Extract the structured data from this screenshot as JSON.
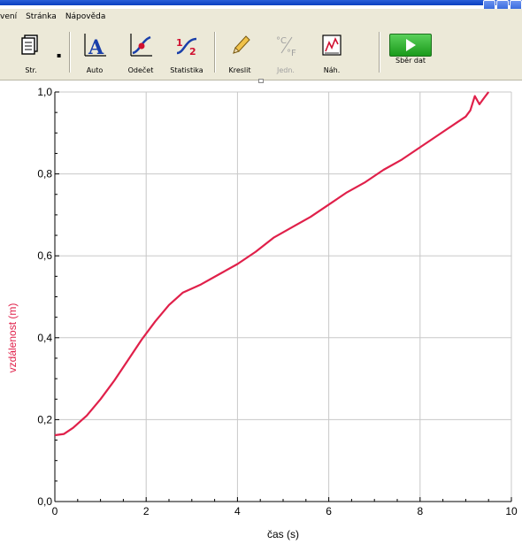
{
  "menu": [
    "vení",
    "Stránka",
    "Nápověda"
  ],
  "toolbar": {
    "page_label": "Str.",
    "auto_label": "Auto",
    "examine_label": "Odečet",
    "stats_label": "Statistika",
    "draw_label": "Kreslit",
    "units_label": "Jedn.",
    "view_label": "Náh.",
    "collect_label": "Sběr dat"
  },
  "chart_data": {
    "type": "line",
    "xlabel": "čas (s)",
    "ylabel": "vzdálenost (m)",
    "xlim": [
      0,
      10
    ],
    "ylim": [
      0.0,
      1.0
    ],
    "xticks": [
      "0",
      "2",
      "4",
      "6",
      "8",
      "10"
    ],
    "yticks": [
      "0,0",
      "0,2",
      "0,4",
      "0,6",
      "0,8",
      "1,0"
    ],
    "grid": true,
    "color": "#e0204a",
    "x": [
      0.0,
      0.2,
      0.4,
      0.7,
      1.0,
      1.3,
      1.6,
      1.9,
      2.2,
      2.5,
      2.8,
      3.2,
      3.6,
      4.0,
      4.4,
      4.8,
      5.2,
      5.6,
      6.0,
      6.4,
      6.8,
      7.2,
      7.6,
      8.0,
      8.4,
      8.8,
      9.0,
      9.1,
      9.2,
      9.3,
      9.4,
      9.5
    ],
    "y": [
      0.162,
      0.165,
      0.18,
      0.21,
      0.25,
      0.295,
      0.345,
      0.395,
      0.44,
      0.48,
      0.51,
      0.53,
      0.555,
      0.58,
      0.61,
      0.645,
      0.67,
      0.695,
      0.725,
      0.755,
      0.78,
      0.81,
      0.835,
      0.865,
      0.895,
      0.925,
      0.94,
      0.955,
      0.99,
      0.97,
      0.985,
      1.0
    ]
  }
}
